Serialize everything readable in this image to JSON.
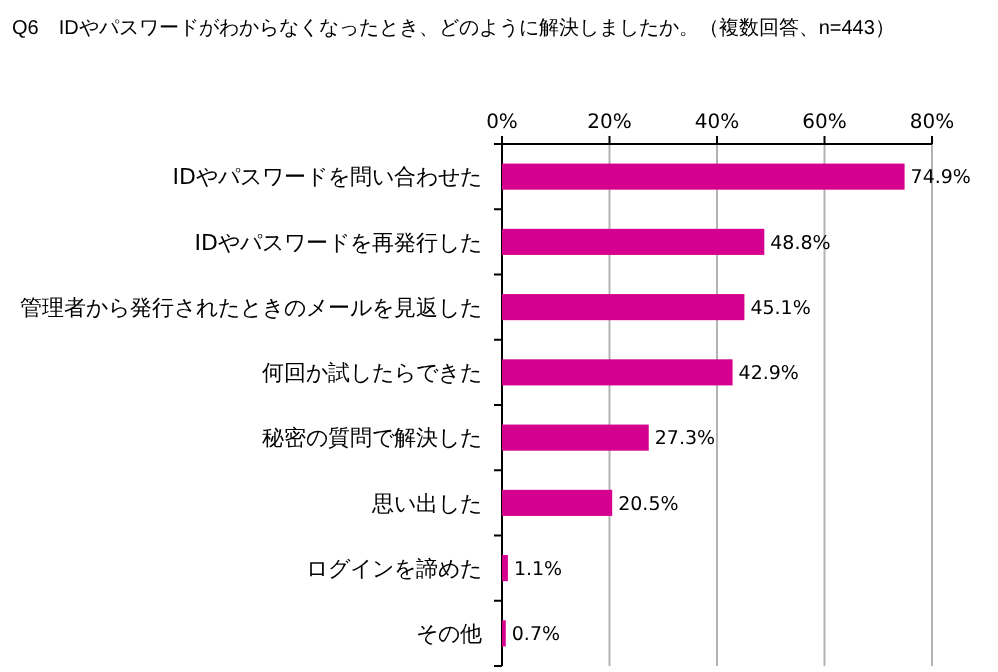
{
  "chart_data": {
    "type": "bar",
    "orientation": "horizontal",
    "title": "Q6　IDやパスワードがわからなくなったとき、どのように解決しましたか。（複数回答、n=443）",
    "categories": [
      "IDやパスワードを問い合わせた",
      "IDやパスワードを再発行した",
      "管理者から発行されたときのメールを見返した",
      "何回か試したらできた",
      "秘密の質問で解決した",
      "思い出した",
      "ログインを諦めた",
      "その他"
    ],
    "values": [
      74.9,
      48.8,
      45.1,
      42.9,
      27.3,
      20.5,
      1.1,
      0.7
    ],
    "value_labels": [
      "74.9%",
      "48.8%",
      "45.1%",
      "42.9%",
      "27.3%",
      "20.5%",
      "1.1%",
      "0.7%"
    ],
    "color": "#d6008f",
    "xlim": [
      0,
      80
    ],
    "xticks": [
      {
        "value": 0,
        "label": "0%"
      },
      {
        "value": 20,
        "label": "20%"
      },
      {
        "value": 40,
        "label": "40%"
      },
      {
        "value": 60,
        "label": "60%"
      },
      {
        "value": 80,
        "label": "80%"
      }
    ],
    "grid": "x"
  }
}
